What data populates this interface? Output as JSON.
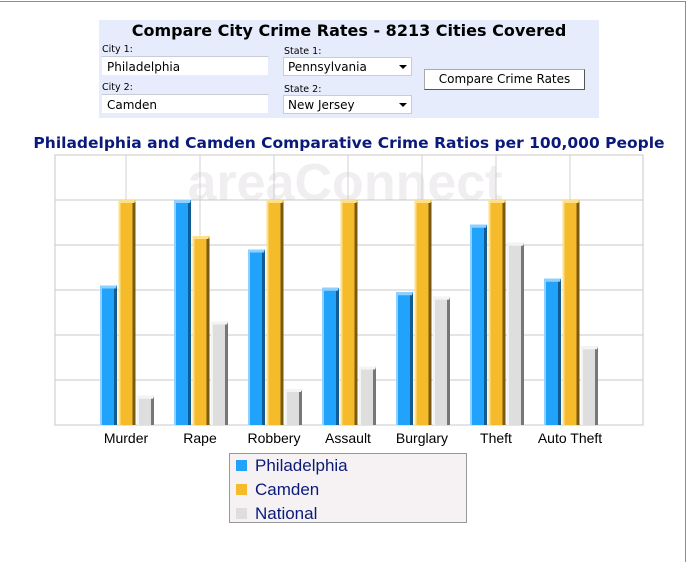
{
  "form": {
    "title": "Compare City Crime Rates - 8213 Cities Covered",
    "city1_label": "City 1:",
    "city1_value": "Philadelphia",
    "state1_label": "State 1:",
    "state1_value": "Pennsylvania",
    "city2_label": "City 2:",
    "city2_value": "Camden",
    "state2_label": "State 2:",
    "state2_value": "New Jersey",
    "compare_label": "Compare Crime Rates"
  },
  "chart_data": {
    "type": "bar",
    "title": "Philadelphia and Camden Comparative Crime Ratios per 100,000 People",
    "watermark": "areaConnect",
    "categories": [
      "Murder",
      "Rape",
      "Robbery",
      "Assault",
      "Burglary",
      "Theft",
      "Auto Theft"
    ],
    "ylim": [
      0,
      100
    ],
    "grid": true,
    "legend_placement": "bottom",
    "series": [
      {
        "name": "Philadelphia",
        "color": "#22a3fb",
        "values": [
          62,
          100,
          78,
          61,
          59,
          89,
          65
        ]
      },
      {
        "name": "Camden",
        "color": "#f5bb2a",
        "values": [
          100,
          84,
          100,
          100,
          100,
          100,
          100
        ]
      },
      {
        "name": "National",
        "color": "#dedede",
        "values": [
          13,
          46,
          16,
          26,
          57,
          81,
          35
        ]
      }
    ]
  }
}
